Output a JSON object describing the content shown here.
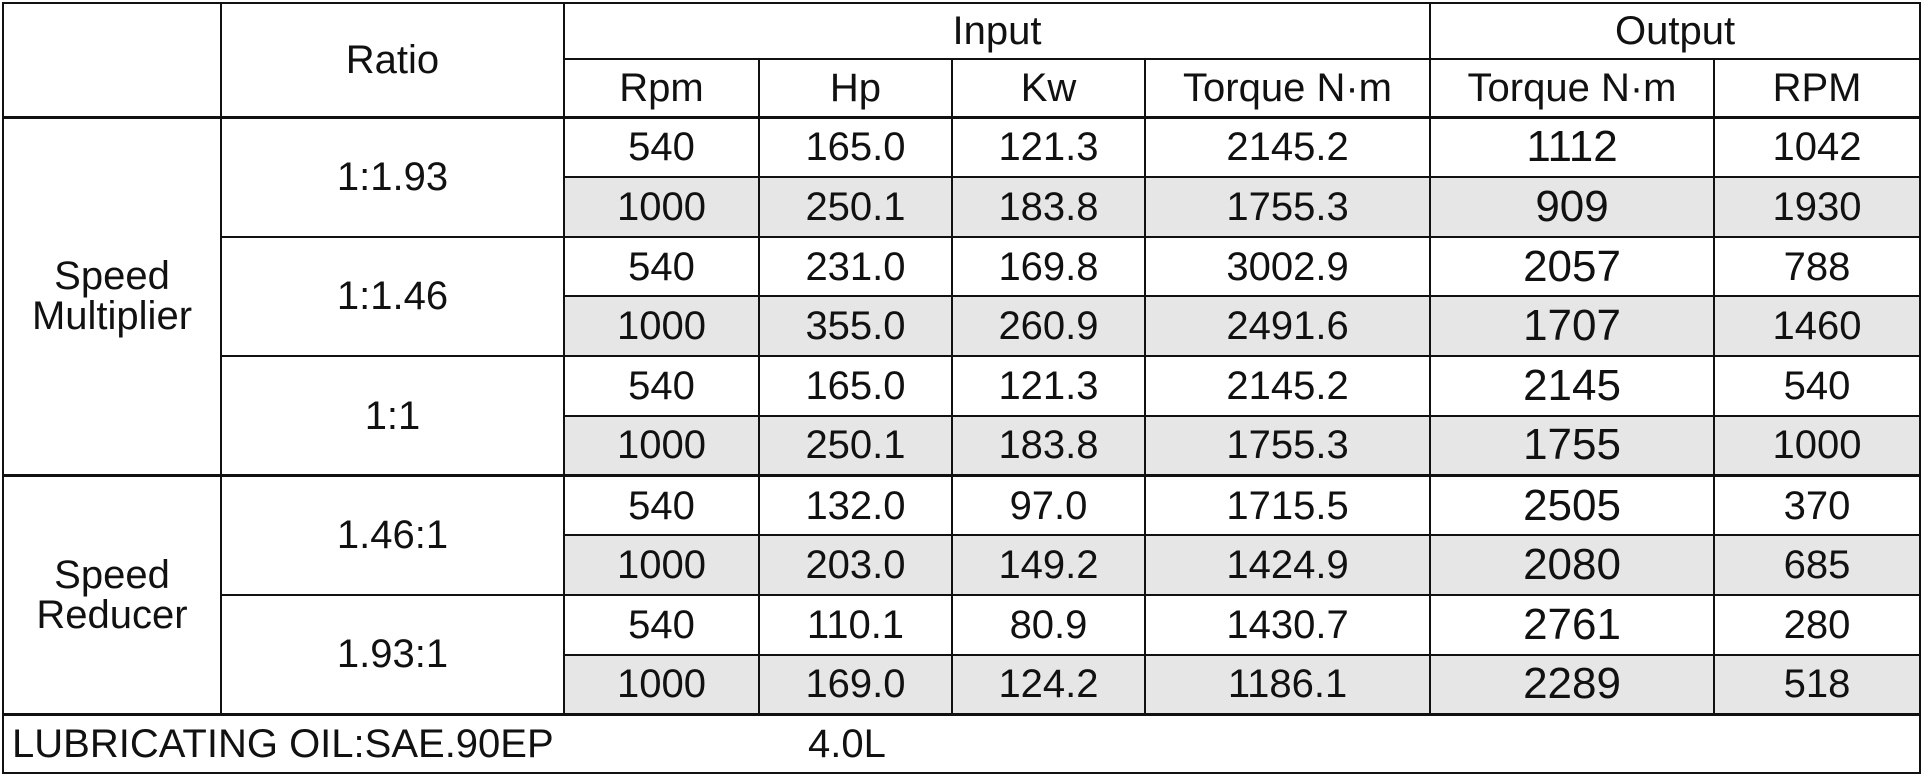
{
  "headers": {
    "ratio": "Ratio",
    "input": "Input",
    "output": "Output",
    "input_columns": [
      "Rpm",
      "Hp",
      "Kw",
      "Torque N·m"
    ],
    "output_columns": [
      "Torque N·m",
      "RPM"
    ]
  },
  "groups": [
    {
      "label_line1": "Speed",
      "label_line2": "Multiplier",
      "ratios": [
        {
          "ratio": "1:1.93",
          "rows": [
            {
              "rpm": "540",
              "hp": "165.0",
              "kw": "121.3",
              "torque_in": "2145.2",
              "torque_out": "1112",
              "rpm_out": "1042"
            },
            {
              "rpm": "1000",
              "hp": "250.1",
              "kw": "183.8",
              "torque_in": "1755.3",
              "torque_out": "909",
              "rpm_out": "1930"
            }
          ]
        },
        {
          "ratio": "1:1.46",
          "rows": [
            {
              "rpm": "540",
              "hp": "231.0",
              "kw": "169.8",
              "torque_in": "3002.9",
              "torque_out": "2057",
              "rpm_out": "788"
            },
            {
              "rpm": "1000",
              "hp": "355.0",
              "kw": "260.9",
              "torque_in": "2491.6",
              "torque_out": "1707",
              "rpm_out": "1460"
            }
          ]
        },
        {
          "ratio": "1:1",
          "rows": [
            {
              "rpm": "540",
              "hp": "165.0",
              "kw": "121.3",
              "torque_in": "2145.2",
              "torque_out": "2145",
              "rpm_out": "540"
            },
            {
              "rpm": "1000",
              "hp": "250.1",
              "kw": "183.8",
              "torque_in": "1755.3",
              "torque_out": "1755",
              "rpm_out": "1000"
            }
          ]
        }
      ]
    },
    {
      "label_line1": "Speed",
      "label_line2": "Reducer",
      "ratios": [
        {
          "ratio": "1.46:1",
          "rows": [
            {
              "rpm": "540",
              "hp": "132.0",
              "kw": "97.0",
              "torque_in": "1715.5",
              "torque_out": "2505",
              "rpm_out": "370"
            },
            {
              "rpm": "1000",
              "hp": "203.0",
              "kw": "149.2",
              "torque_in": "1424.9",
              "torque_out": "2080",
              "rpm_out": "685"
            }
          ]
        },
        {
          "ratio": "1.93:1",
          "rows": [
            {
              "rpm": "540",
              "hp": "110.1",
              "kw": "80.9",
              "torque_in": "1430.7",
              "torque_out": "2761",
              "rpm_out": "280"
            },
            {
              "rpm": "1000",
              "hp": "169.0",
              "kw": "124.2",
              "torque_in": "1186.1",
              "torque_out": "2289",
              "rpm_out": "518"
            }
          ]
        }
      ]
    }
  ],
  "footer": {
    "label": "LUBRICATING OIL:SAE.90EP",
    "value": "4.0L"
  },
  "colors": {
    "shaded_row": "#e6e6e6",
    "border": "#111111"
  }
}
